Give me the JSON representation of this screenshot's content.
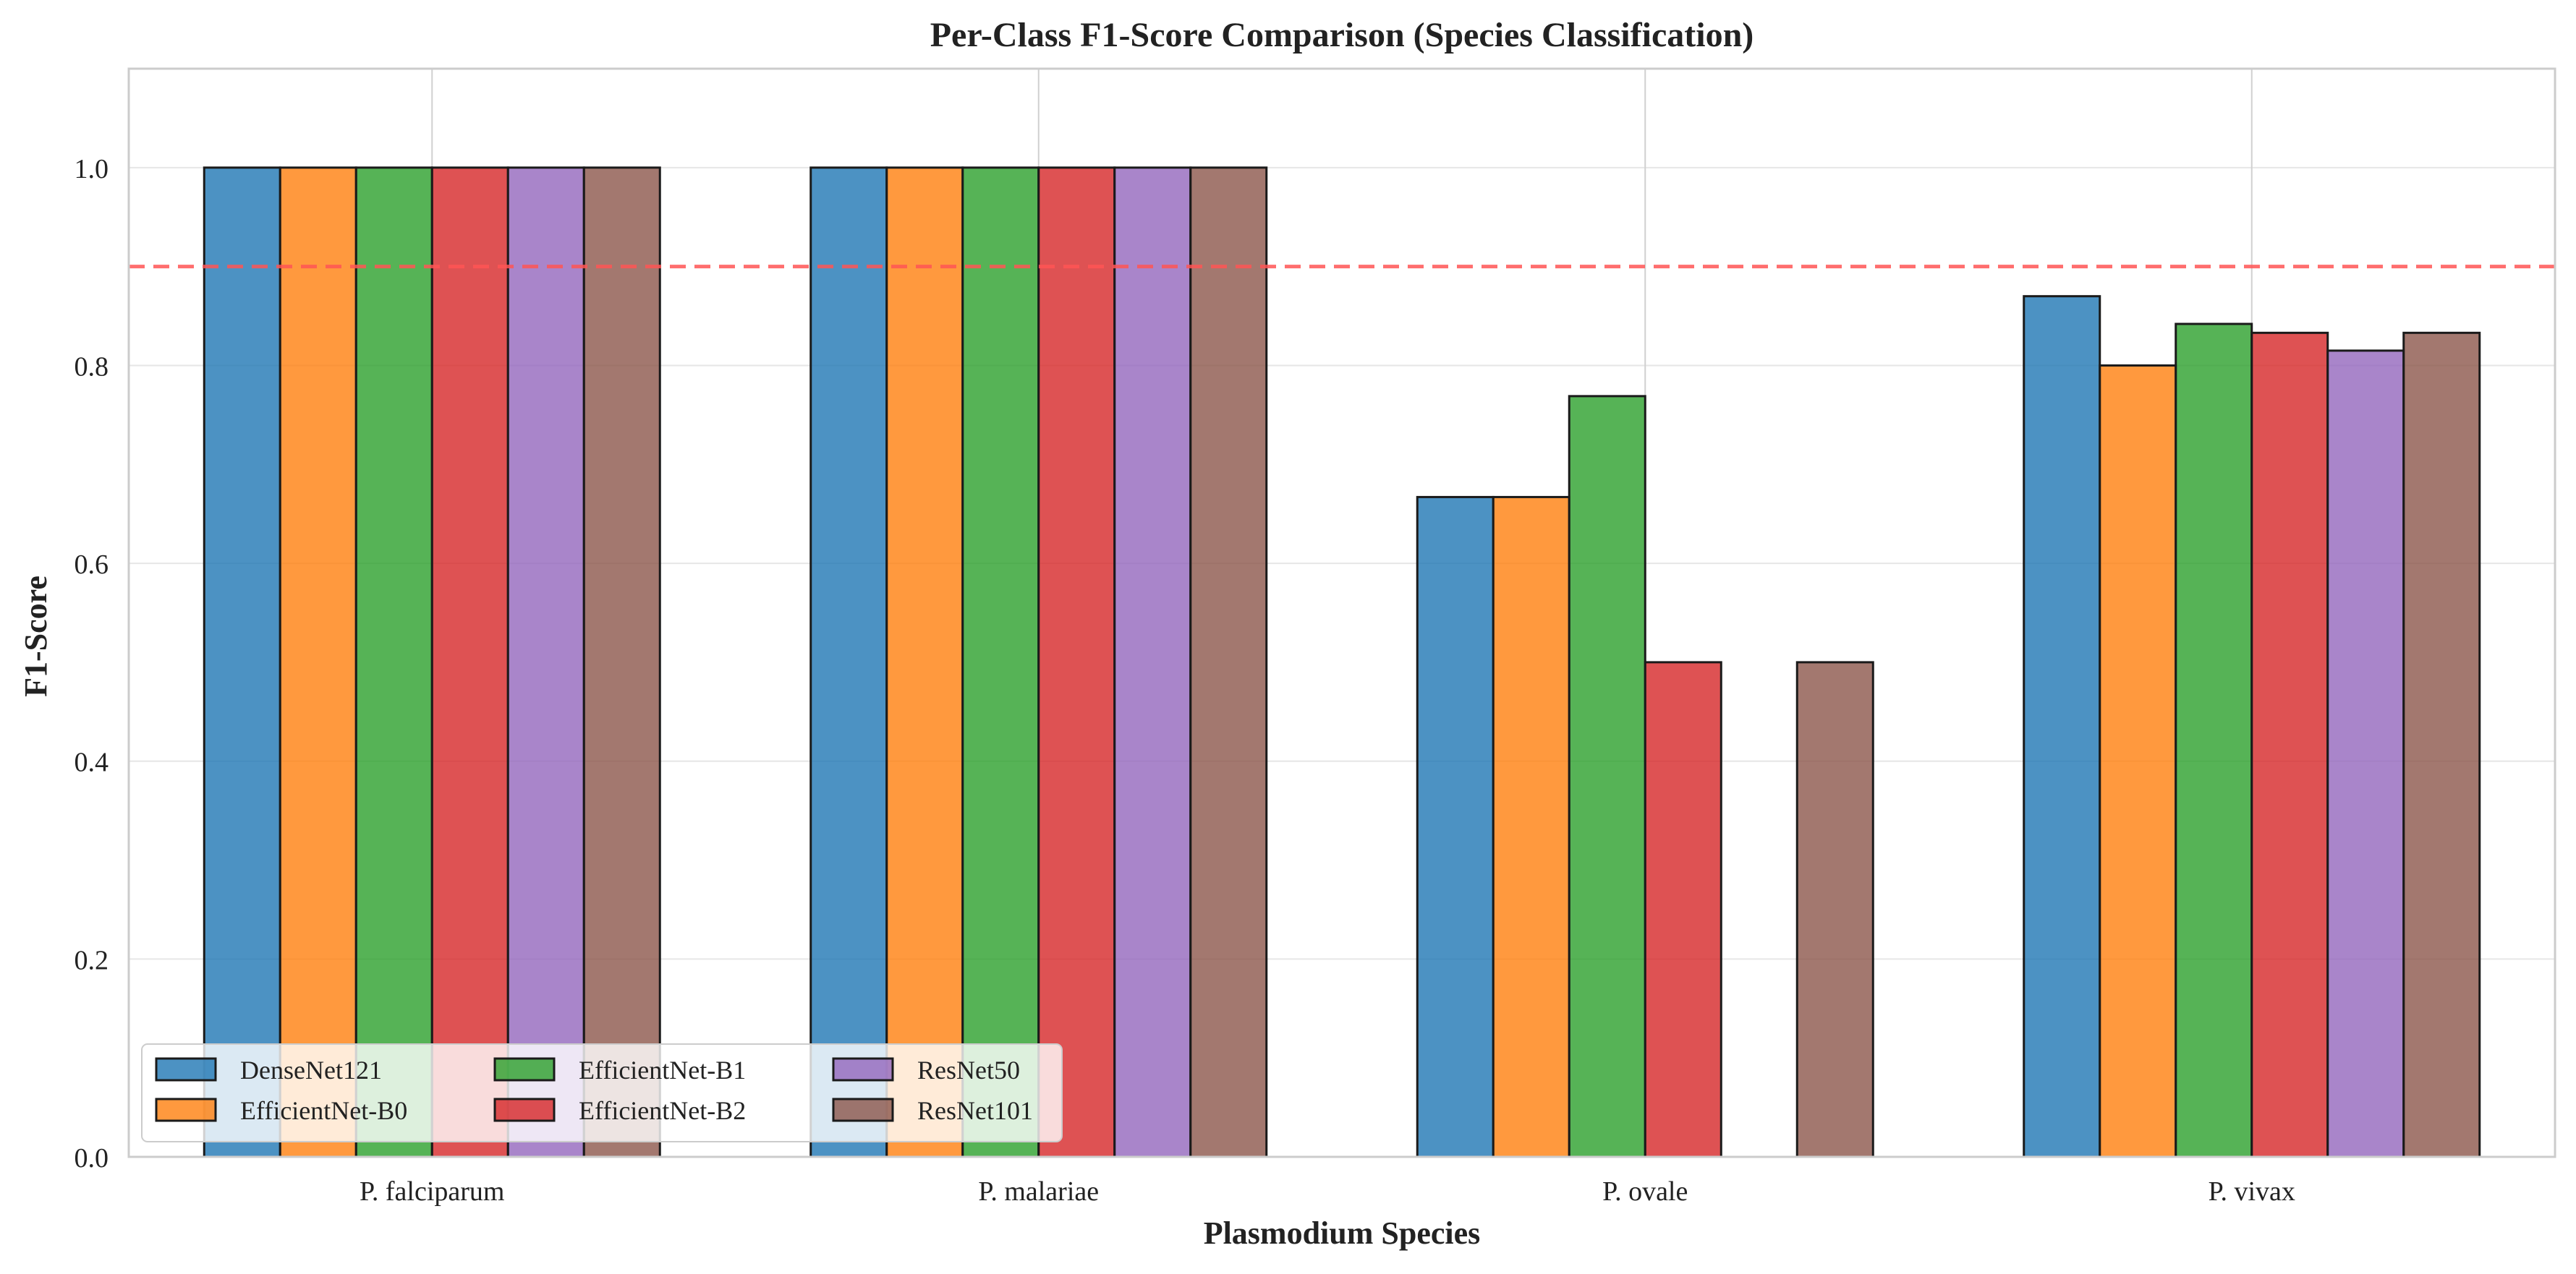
{
  "chart_data": {
    "type": "bar",
    "title": "Per-Class F1-Score Comparison (Species Classification)",
    "xlabel": "Plasmodium Species",
    "ylabel": "F1-Score",
    "ylim": [
      0,
      1.1
    ],
    "yticks": [
      0.0,
      0.2,
      0.4,
      0.6,
      0.8,
      1.0
    ],
    "ytick_labels": [
      "0.0",
      "0.2",
      "0.4",
      "0.6",
      "0.8",
      "1.0"
    ],
    "categories": [
      "P. falciparum",
      "P. malariae",
      "P. ovale",
      "P. vivax"
    ],
    "series": [
      {
        "name": "DenseNet121",
        "color": "#1f77b4",
        "values": [
          1.0,
          1.0,
          0.667,
          0.87
        ]
      },
      {
        "name": "EfficientNet-B0",
        "color": "#ff7f0e",
        "values": [
          1.0,
          1.0,
          0.667,
          0.8
        ]
      },
      {
        "name": "EfficientNet-B1",
        "color": "#2ca02c",
        "values": [
          1.0,
          1.0,
          0.769,
          0.842
        ]
      },
      {
        "name": "EfficientNet-B2",
        "color": "#d62728",
        "values": [
          1.0,
          1.0,
          0.5,
          0.833
        ]
      },
      {
        "name": "ResNet50",
        "color": "#9467bd",
        "values": [
          1.0,
          1.0,
          0.0,
          0.815
        ]
      },
      {
        "name": "ResNet101",
        "color": "#8c564b",
        "values": [
          1.0,
          1.0,
          0.5,
          0.833
        ]
      }
    ],
    "reference_line": {
      "value": 0.9,
      "style": "dashed",
      "color": "#ff5555"
    },
    "grid": true,
    "legend_position": "lower-left",
    "legend_columns": 3
  }
}
